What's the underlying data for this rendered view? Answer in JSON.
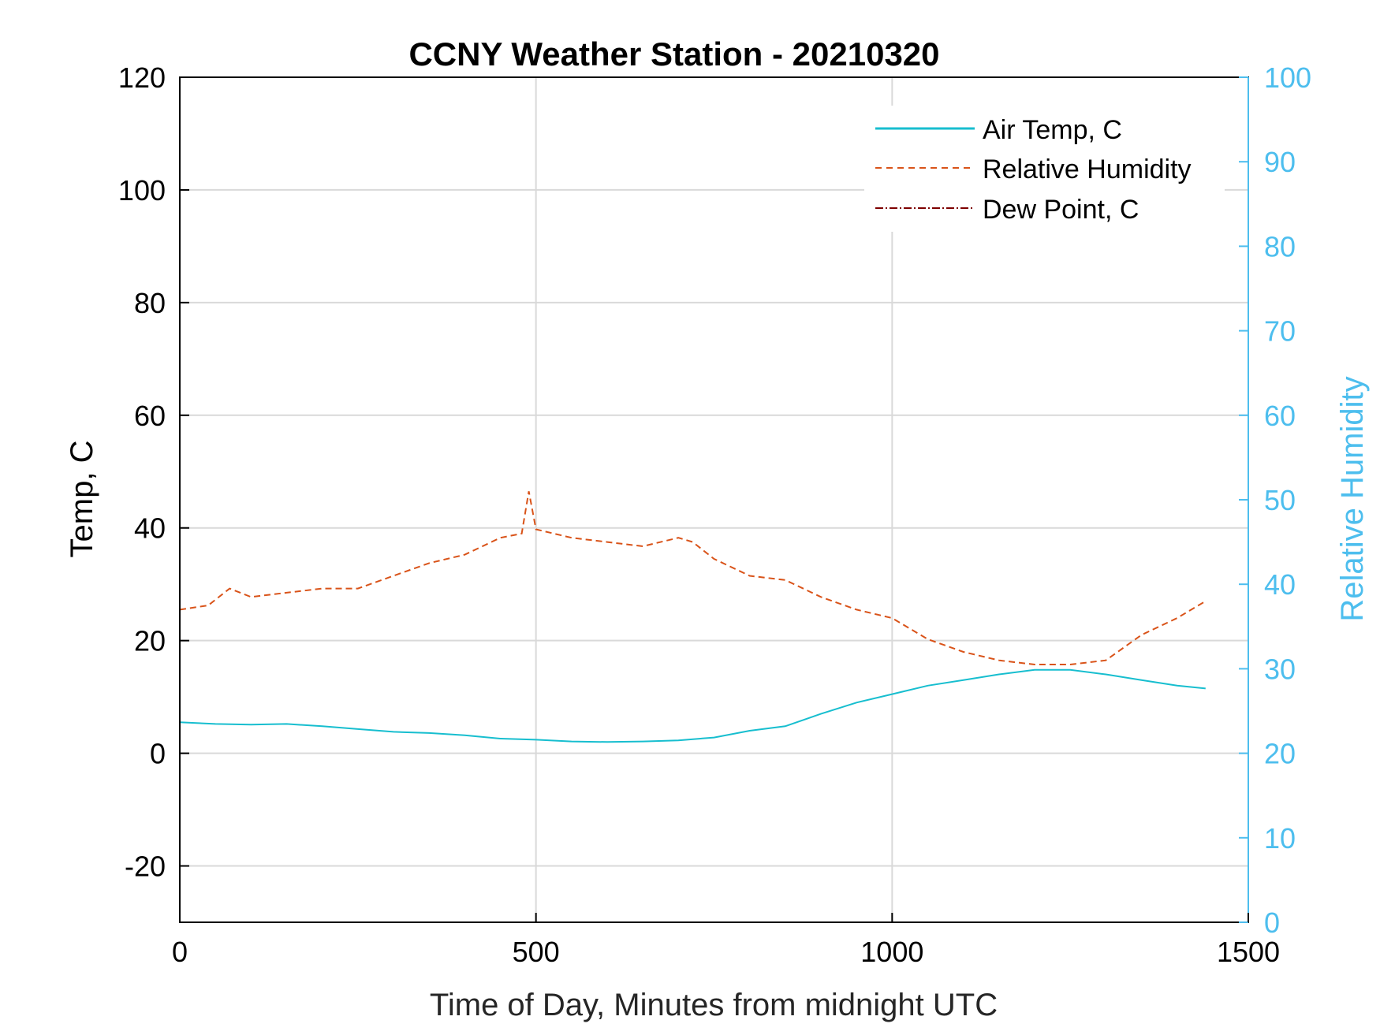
{
  "chart_data": {
    "type": "line",
    "title": "CCNY Weather Station - 20210320",
    "xlabel": "Time of Day, Minutes from midnight UTC",
    "ylabel_left": "Temp, C",
    "ylabel_right": "Relative Humidity",
    "xlim": [
      0,
      1500
    ],
    "ylim_left": [
      -30,
      120
    ],
    "ylim_right": [
      0,
      100
    ],
    "x_ticks": [
      0,
      500,
      1000,
      1500
    ],
    "y_ticks_left": [
      -20,
      0,
      20,
      40,
      60,
      80,
      100,
      120
    ],
    "y_ticks_right": [
      0,
      10,
      20,
      30,
      40,
      50,
      60,
      70,
      80,
      90,
      100
    ],
    "grid": true,
    "legend_position": "top-right",
    "colors": {
      "air_temp": "#17becf",
      "humidity": "#d95319",
      "dew_point": "#7e0000",
      "right_axis": "#4dbeee"
    },
    "series": [
      {
        "name": "Air Temp, C",
        "axis": "left",
        "style": "solid",
        "x": [
          0,
          50,
          100,
          150,
          200,
          250,
          300,
          350,
          400,
          450,
          500,
          550,
          600,
          650,
          700,
          750,
          800,
          850,
          900,
          950,
          1000,
          1050,
          1100,
          1150,
          1200,
          1250,
          1300,
          1350,
          1400,
          1440
        ],
        "y": [
          5.5,
          5.2,
          5.1,
          5.2,
          4.8,
          4.3,
          3.8,
          3.6,
          3.2,
          2.6,
          2.4,
          2.1,
          2.0,
          2.1,
          2.3,
          2.8,
          4.0,
          4.8,
          7.0,
          9.0,
          10.5,
          12.0,
          13.0,
          14.0,
          14.8,
          14.8,
          14.0,
          13.0,
          12.0,
          11.5
        ]
      },
      {
        "name": "Relative Humidity",
        "axis": "right",
        "style": "dashed",
        "x": [
          0,
          40,
          70,
          100,
          150,
          200,
          250,
          300,
          350,
          400,
          450,
          480,
          490,
          500,
          550,
          600,
          650,
          700,
          720,
          750,
          800,
          850,
          900,
          950,
          1000,
          1050,
          1100,
          1150,
          1200,
          1250,
          1300,
          1350,
          1400,
          1440
        ],
        "y": [
          37.0,
          37.5,
          39.5,
          38.5,
          39.0,
          39.5,
          39.5,
          41.0,
          42.5,
          43.5,
          45.5,
          46.0,
          51.0,
          46.5,
          45.5,
          45.0,
          44.5,
          45.5,
          45.0,
          43.0,
          41.0,
          40.5,
          38.5,
          37.0,
          36.0,
          33.5,
          32.0,
          31.0,
          30.5,
          30.5,
          31.0,
          34.0,
          36.0,
          38.0
        ]
      },
      {
        "name": "Dew Point, C",
        "axis": "left",
        "style": "dashdot",
        "x": [],
        "y": []
      }
    ]
  }
}
